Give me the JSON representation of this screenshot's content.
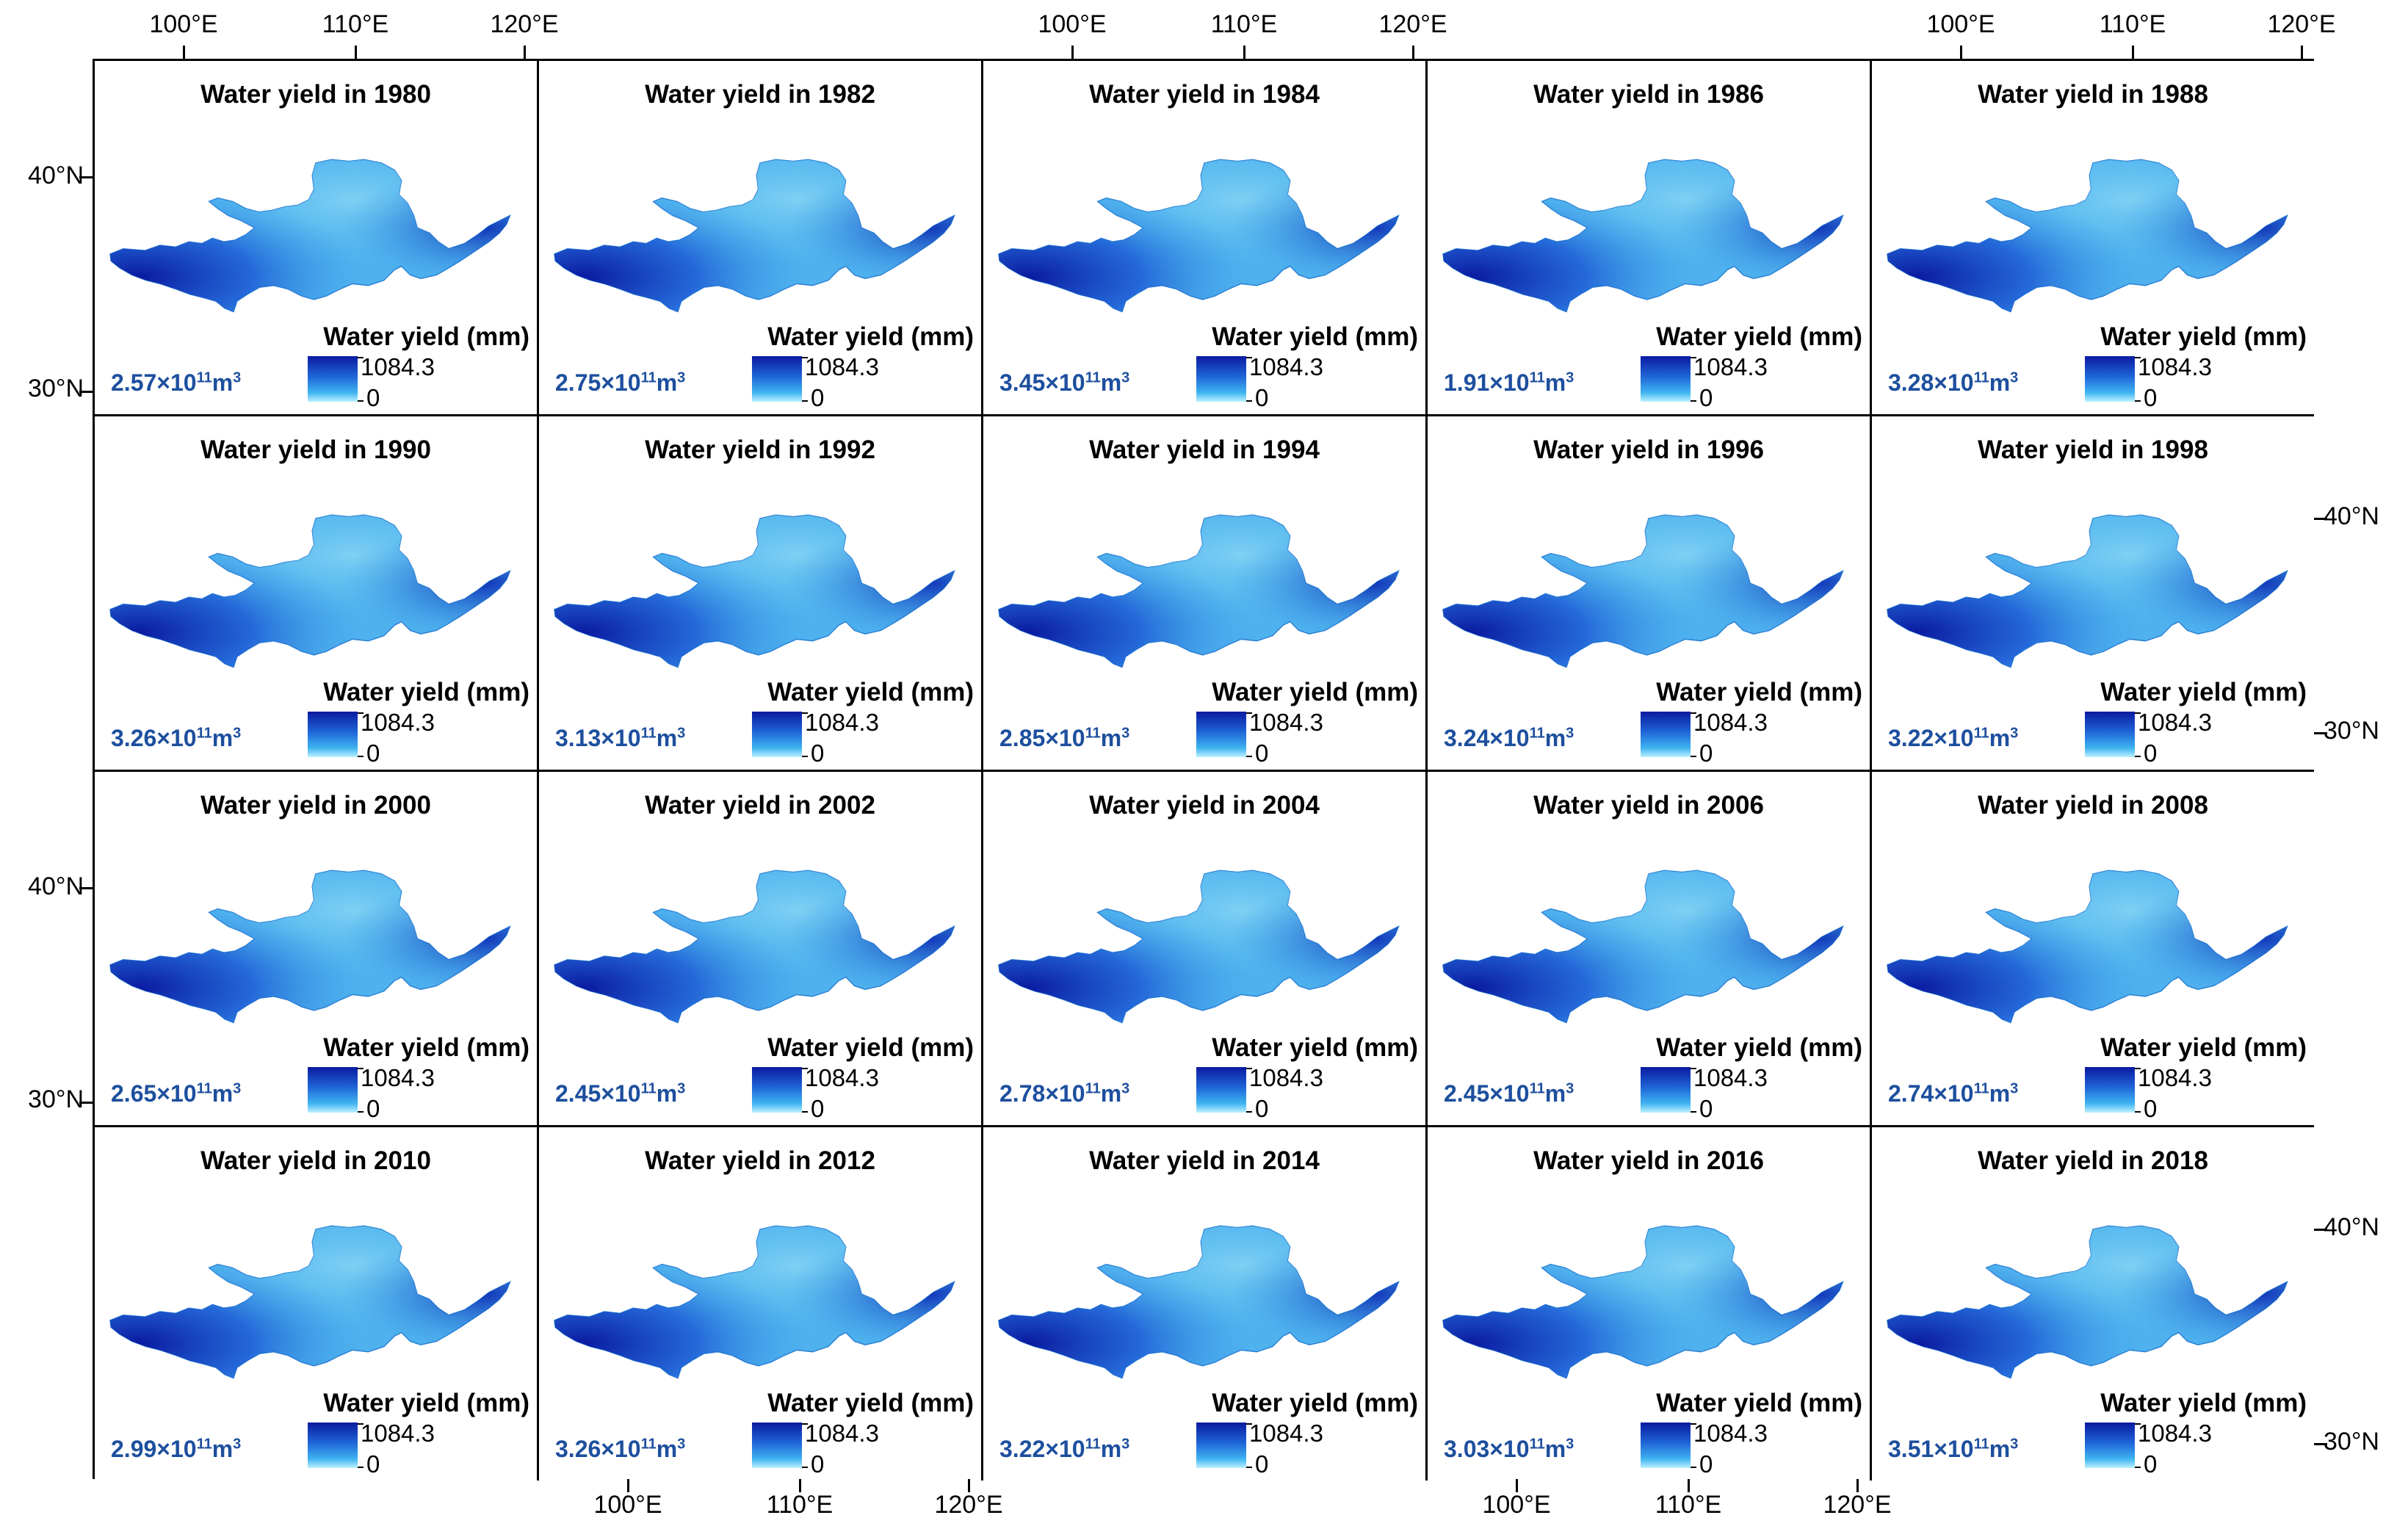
{
  "panel_title_prefix": "Water yield in",
  "legend": {
    "title": "Water yield (mm)",
    "max_label": "1084.3",
    "min_label": "0",
    "colors": [
      "#0a1aa0",
      "#1f66d8",
      "#3fb4f0",
      "#bdf1ff"
    ]
  },
  "volume_unit": "m",
  "volume_exponent": "11",
  "volume_times": "×10",
  "axis": {
    "lon_labels": [
      "100°E",
      "110°E",
      "120°E"
    ],
    "lat_labels": [
      "40°N",
      "30°N"
    ]
  },
  "panels": [
    {
      "year": "1980",
      "title": "Water yield in 1980",
      "total_mantissa": "2.57"
    },
    {
      "year": "1982",
      "title": "Water yield in 1982",
      "total_mantissa": "2.75"
    },
    {
      "year": "1984",
      "title": "Water yield in 1984",
      "total_mantissa": "3.45"
    },
    {
      "year": "1986",
      "title": "Water yield in 1986",
      "total_mantissa": "1.91"
    },
    {
      "year": "1988",
      "title": "Water yield in 1988",
      "total_mantissa": "3.28"
    },
    {
      "year": "1990",
      "title": "Water yield in 1990",
      "total_mantissa": "3.26"
    },
    {
      "year": "1992",
      "title": "Water yield in 1992",
      "total_mantissa": "3.13"
    },
    {
      "year": "1994",
      "title": "Water yield in 1994",
      "total_mantissa": "2.85"
    },
    {
      "year": "1996",
      "title": "Water yield in 1996",
      "total_mantissa": "3.24"
    },
    {
      "year": "1998",
      "title": "Water yield in 1998",
      "total_mantissa": "3.22"
    },
    {
      "year": "2000",
      "title": "Water yield in 2000",
      "total_mantissa": "2.65"
    },
    {
      "year": "2002",
      "title": "Water yield in 2002",
      "total_mantissa": "2.45"
    },
    {
      "year": "2004",
      "title": "Water yield in 2004",
      "total_mantissa": "2.78"
    },
    {
      "year": "2006",
      "title": "Water yield in 2006",
      "total_mantissa": "2.45"
    },
    {
      "year": "2008",
      "title": "Water yield in 2008",
      "total_mantissa": "2.74"
    },
    {
      "year": "2010",
      "title": "Water yield in 2010",
      "total_mantissa": "2.99"
    },
    {
      "year": "2012",
      "title": "Water yield in 2012",
      "total_mantissa": "3.26"
    },
    {
      "year": "2014",
      "title": "Water yield in 2014",
      "total_mantissa": "3.22"
    },
    {
      "year": "2016",
      "title": "Water yield in 2016",
      "total_mantissa": "3.03"
    },
    {
      "year": "2018",
      "title": "Water yield in 2018",
      "total_mantissa": "3.51"
    }
  ]
}
